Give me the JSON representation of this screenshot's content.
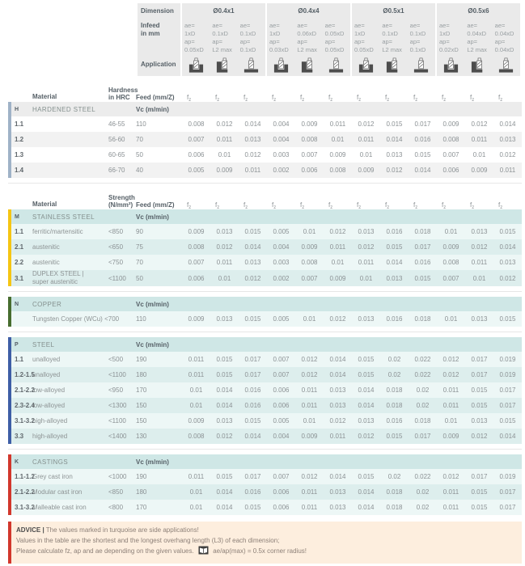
{
  "header": {
    "dimension_label": "Dimension",
    "infeed_label_line1": "Infeed",
    "infeed_label_line2": "in mm",
    "application_label": "Application",
    "ae_prefix": "ae=",
    "ap_prefix": "ap=",
    "groups": [
      {
        "dimension": "Ø0.4x1",
        "columns": [
          {
            "ae": "1xD",
            "ap": "0.05xD",
            "icon": "slot-milling-icon"
          },
          {
            "ae": "0.1xD",
            "ap": "L2 max",
            "icon": "side-milling-icon"
          },
          {
            "ae": "0.1xD",
            "ap": "0.1xD",
            "icon": "face-milling-icon"
          }
        ]
      },
      {
        "dimension": "Ø0.4x4",
        "columns": [
          {
            "ae": "1xD",
            "ap": "0.03xD",
            "icon": "slot-milling-icon"
          },
          {
            "ae": "0.06xD",
            "ap": "L2 max",
            "icon": "side-milling-icon"
          },
          {
            "ae": "0.05xD",
            "ap": "0.05xD",
            "icon": "face-milling-icon"
          }
        ]
      },
      {
        "dimension": "Ø0.5x1",
        "columns": [
          {
            "ae": "1xD",
            "ap": "0.05xD",
            "icon": "slot-milling-icon"
          },
          {
            "ae": "0.1xD",
            "ap": "L2 max",
            "icon": "side-milling-icon"
          },
          {
            "ae": "0.1xD",
            "ap": "0.1xD",
            "icon": "face-milling-icon"
          }
        ]
      },
      {
        "dimension": "Ø0.5x6",
        "columns": [
          {
            "ae": "1xD",
            "ap": "0.02xD",
            "icon": "slot-milling-icon"
          },
          {
            "ae": "0.04xD",
            "ap": "L2 max",
            "icon": "side-milling-icon"
          },
          {
            "ae": "0.04xD",
            "ap": "0.04xD",
            "icon": "face-milling-icon"
          }
        ]
      }
    ]
  },
  "fz_label": {
    "base": "f",
    "sub": "z"
  },
  "colors": {
    "header_bg": "#eaeaea",
    "gray_header": "#ececec",
    "gray_row_light": "#ffffff",
    "gray_row_dark": "#f2f2f2",
    "teal_header": "#cfe7e6",
    "teal_row_light": "#edf7f6",
    "teal_row_dark": "#ddeeed",
    "advice_bg": "#fdeede",
    "advice_bar": "#d2372c"
  },
  "sections": [
    {
      "letter": "H",
      "name": "HARDENED STEEL",
      "theme": "gray",
      "bar_color": "#9fb2c7",
      "vc_label": "Vc (m/min)",
      "column_header": {
        "material": "Material",
        "qualifier": [
          "Hardness",
          "in HRC"
        ],
        "feed": "Feed (mm/Z)"
      },
      "rows": [
        {
          "id": "1.1",
          "material": "",
          "qualifier": "46-55",
          "vc": "110",
          "fz": [
            "0.008",
            "0.012",
            "0.014",
            "0.004",
            "0.009",
            "0.011",
            "0.012",
            "0.015",
            "0.017",
            "0.009",
            "0.012",
            "0.014"
          ]
        },
        {
          "id": "1.2",
          "material": "",
          "qualifier": "56-60",
          "vc": "70",
          "fz": [
            "0.007",
            "0.011",
            "0.013",
            "0.004",
            "0.008",
            "0.01",
            "0.011",
            "0.014",
            "0.016",
            "0.008",
            "0.011",
            "0.013"
          ]
        },
        {
          "id": "1.3",
          "material": "",
          "qualifier": "60-65",
          "vc": "50",
          "fz": [
            "0.006",
            "0.01",
            "0.012",
            "0.003",
            "0.007",
            "0.009",
            "0.01",
            "0.013",
            "0.015",
            "0.007",
            "0.01",
            "0.012"
          ]
        },
        {
          "id": "1.4",
          "material": "",
          "qualifier": "66-70",
          "vc": "40",
          "fz": [
            "0.005",
            "0.009",
            "0.011",
            "0.002",
            "0.006",
            "0.008",
            "0.009",
            "0.012",
            "0.014",
            "0.006",
            "0.009",
            "0.011"
          ]
        }
      ]
    },
    {
      "letter": "M",
      "name": "STAINLESS STEEL",
      "theme": "teal",
      "bar_color": "#f5c513",
      "vc_label": "Vc (m/min)",
      "column_header": {
        "material": "Material",
        "qualifier": [
          "Strength",
          "(N/mm²)"
        ],
        "feed": "Feed (mm/Z)"
      },
      "rows": [
        {
          "id": "1.1",
          "material": "ferritic/martensitic",
          "qualifier": "<850",
          "vc": "90",
          "fz": [
            "0.009",
            "0.013",
            "0.015",
            "0.005",
            "0.01",
            "0.012",
            "0.013",
            "0.016",
            "0.018",
            "0.01",
            "0.013",
            "0.015"
          ]
        },
        {
          "id": "2.1",
          "material": "austenitic",
          "qualifier": "<650",
          "vc": "75",
          "fz": [
            "0.008",
            "0.012",
            "0.014",
            "0.004",
            "0.009",
            "0.011",
            "0.012",
            "0.015",
            "0.017",
            "0.009",
            "0.012",
            "0.014"
          ]
        },
        {
          "id": "2.2",
          "material": "austenitic",
          "qualifier": "<750",
          "vc": "70",
          "fz": [
            "0.007",
            "0.011",
            "0.013",
            "0.003",
            "0.008",
            "0.01",
            "0.011",
            "0.014",
            "0.016",
            "0.008",
            "0.011",
            "0.013"
          ]
        },
        {
          "id": "3.1",
          "material": "DUPLEX STEEL |\nsuper austenitic",
          "qualifier": "<1100",
          "vc": "50",
          "fz": [
            "0.006",
            "0.01",
            "0.012",
            "0.002",
            "0.007",
            "0.009",
            "0.01",
            "0.013",
            "0.015",
            "0.007",
            "0.01",
            "0.012"
          ]
        }
      ]
    },
    {
      "letter": "N",
      "name": "COPPER",
      "theme": "teal",
      "bar_color": "#476d2f",
      "vc_label": "Vc (m/min)",
      "rows": [
        {
          "id": "",
          "material": "Tungsten Copper (WCu) <700",
          "qualifier": "",
          "vc": "110",
          "fz": [
            "0.009",
            "0.013",
            "0.015",
            "0.005",
            "0.01",
            "0.012",
            "0.013",
            "0.016",
            "0.018",
            "0.01",
            "0.013",
            "0.015"
          ]
        }
      ]
    },
    {
      "letter": "P",
      "name": "STEEL",
      "theme": "teal",
      "bar_color": "#3e5ea6",
      "vc_label": "Vc (m/min)",
      "rows": [
        {
          "id": "1.1",
          "material": "unalloyed",
          "qualifier": "<500",
          "vc": "190",
          "fz": [
            "0.011",
            "0.015",
            "0.017",
            "0.007",
            "0.012",
            "0.014",
            "0.015",
            "0.02",
            "0.022",
            "0.012",
            "0.017",
            "0.019"
          ]
        },
        {
          "id": "1.2-1.5",
          "material": "unalloyed",
          "qualifier": "<1100",
          "vc": "180",
          "fz": [
            "0.011",
            "0.015",
            "0.017",
            "0.007",
            "0.012",
            "0.014",
            "0.015",
            "0.02",
            "0.022",
            "0.012",
            "0.017",
            "0.019"
          ]
        },
        {
          "id": "2.1-2.2",
          "material": "low-alloyed",
          "qualifier": "<950",
          "vc": "170",
          "fz": [
            "0.01",
            "0.014",
            "0.016",
            "0.006",
            "0.011",
            "0.013",
            "0.014",
            "0.018",
            "0.02",
            "0.011",
            "0.015",
            "0.017"
          ]
        },
        {
          "id": "2.3-2.4",
          "material": "low-alloyed",
          "qualifier": "<1300",
          "vc": "150",
          "fz": [
            "0.01",
            "0.014",
            "0.016",
            "0.006",
            "0.011",
            "0.013",
            "0.014",
            "0.018",
            "0.02",
            "0.011",
            "0.015",
            "0.017"
          ]
        },
        {
          "id": "3.1-3.2",
          "material": "high-alloyed",
          "qualifier": "<1100",
          "vc": "150",
          "fz": [
            "0.009",
            "0.013",
            "0.015",
            "0.005",
            "0.01",
            "0.012",
            "0.013",
            "0.016",
            "0.018",
            "0.01",
            "0.013",
            "0.015"
          ]
        },
        {
          "id": "3.3",
          "material": "high-alloyed",
          "qualifier": "<1400",
          "vc": "130",
          "fz": [
            "0.008",
            "0.012",
            "0.014",
            "0.004",
            "0.009",
            "0.011",
            "0.012",
            "0.015",
            "0.017",
            "0.009",
            "0.012",
            "0.014"
          ]
        }
      ]
    },
    {
      "letter": "K",
      "name": "CASTINGS",
      "theme": "teal",
      "bar_color": "#d2372c",
      "vc_label": "Vc (m/min)",
      "rows": [
        {
          "id": "1.1-1.2",
          "material": "Grey cast iron",
          "qualifier": "<1000",
          "vc": "190",
          "fz": [
            "0.011",
            "0.015",
            "0.017",
            "0.007",
            "0.012",
            "0.014",
            "0.015",
            "0.02",
            "0.022",
            "0.012",
            "0.017",
            "0.019"
          ]
        },
        {
          "id": "2.1-2.2",
          "material": "Modular cast iron",
          "qualifier": "<850",
          "vc": "180",
          "fz": [
            "0.01",
            "0.014",
            "0.016",
            "0.006",
            "0.011",
            "0.013",
            "0.014",
            "0.018",
            "0.02",
            "0.011",
            "0.015",
            "0.017"
          ]
        },
        {
          "id": "3.1-3.2",
          "material": "Malleable cast iron",
          "qualifier": "<800",
          "vc": "170",
          "fz": [
            "0.01",
            "0.014",
            "0.015",
            "0.006",
            "0.011",
            "0.013",
            "0.014",
            "0.018",
            "0.02",
            "0.011",
            "0.015",
            "0.017"
          ]
        }
      ]
    }
  ],
  "advice": {
    "title": "ADVICE",
    "separator": "|",
    "line1": "The values marked in turquoise are side applications!",
    "line2": "Values in the table are the shortest and the longest overhang length (L3) of each dimension;",
    "line3_before_icon": "Please calculate fz, ap and ae depending on the given values.",
    "line3_after_icon": "ae/ap(max) = 0.5x corner radius!"
  }
}
